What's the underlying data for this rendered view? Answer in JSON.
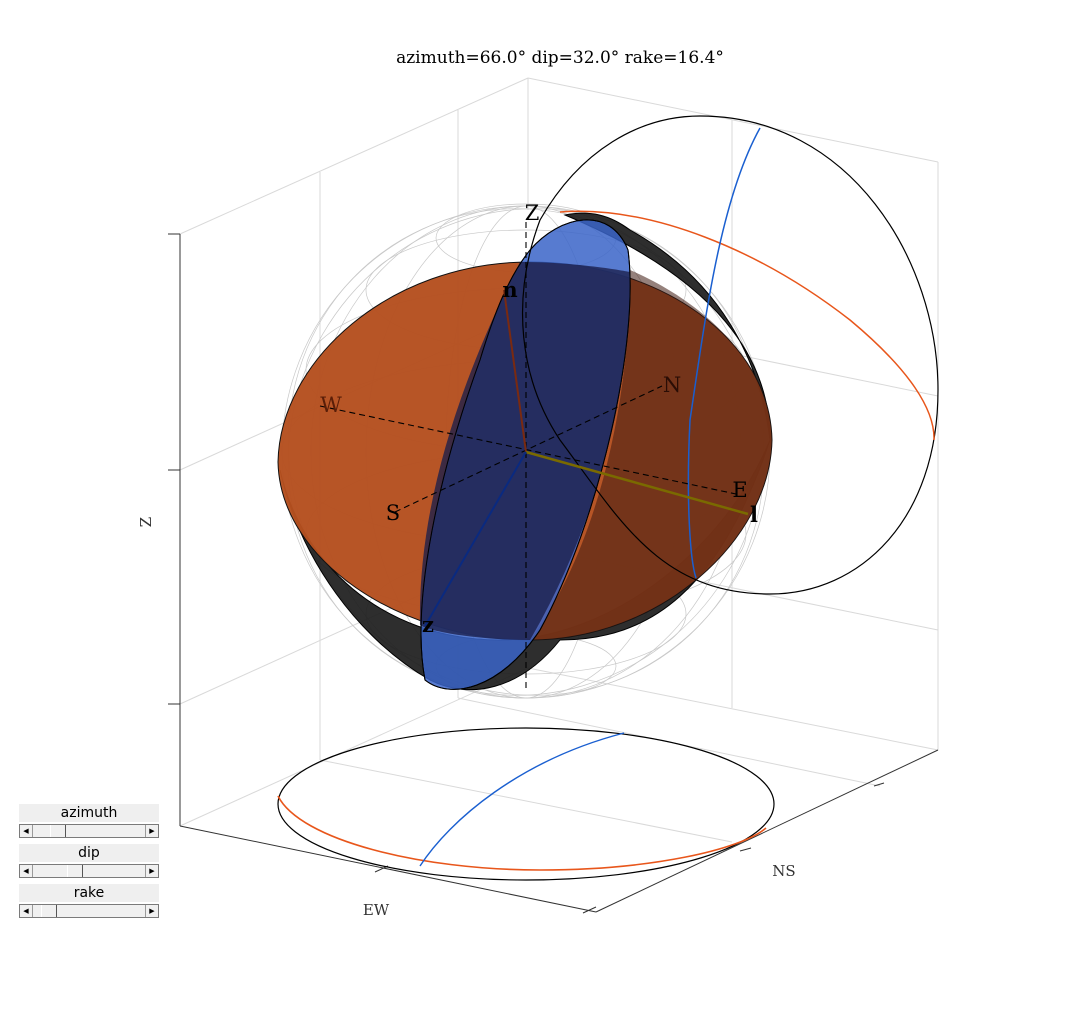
{
  "title": "azimuth=66.0° dip=32.0° rake=16.4°",
  "axes": {
    "x_label": "EW",
    "y_label": "NS",
    "z_label": "Z"
  },
  "directions": {
    "zenith": "Z",
    "north": "N",
    "south": "S",
    "east": "E",
    "west": "W"
  },
  "vectors": {
    "normal": "n",
    "slip": "l",
    "z": "z"
  },
  "colors": {
    "upper_hemisphere": "#b5501f",
    "fault_plane": "#3a64c8",
    "lower_hemisphere": "#1c1c1c",
    "projection_orange": "#e8561b",
    "projection_blue": "#1a5fd0",
    "slip_vector": "#7a6a00"
  },
  "controls": [
    {
      "label": "azimuth",
      "value_fraction": 0.183
    },
    {
      "label": "dip",
      "value_fraction": 0.356
    },
    {
      "label": "rake",
      "value_fraction": 0.091
    }
  ]
}
